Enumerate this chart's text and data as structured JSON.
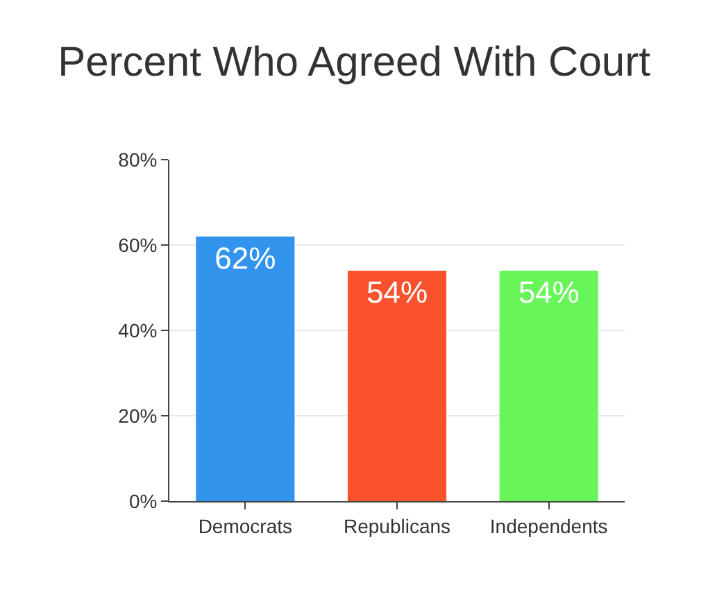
{
  "chart_data": {
    "type": "bar",
    "title": "Percent Who Agreed With Court",
    "categories": [
      "Democrats",
      "Republicans",
      "Independents"
    ],
    "values": [
      62,
      54,
      54
    ],
    "colors": [
      "#3294ec",
      "#f9522d",
      "#67f55a"
    ],
    "value_labels": [
      "62%",
      "54%",
      "54%"
    ],
    "ylim": [
      0,
      80
    ],
    "yticks": [
      {
        "value": 0,
        "label": "0%"
      },
      {
        "value": 20,
        "label": "20%"
      },
      {
        "value": 40,
        "label": "40%"
      },
      {
        "value": 60,
        "label": "60%"
      },
      {
        "value": 80,
        "label": "80%"
      }
    ],
    "grid": "y"
  }
}
